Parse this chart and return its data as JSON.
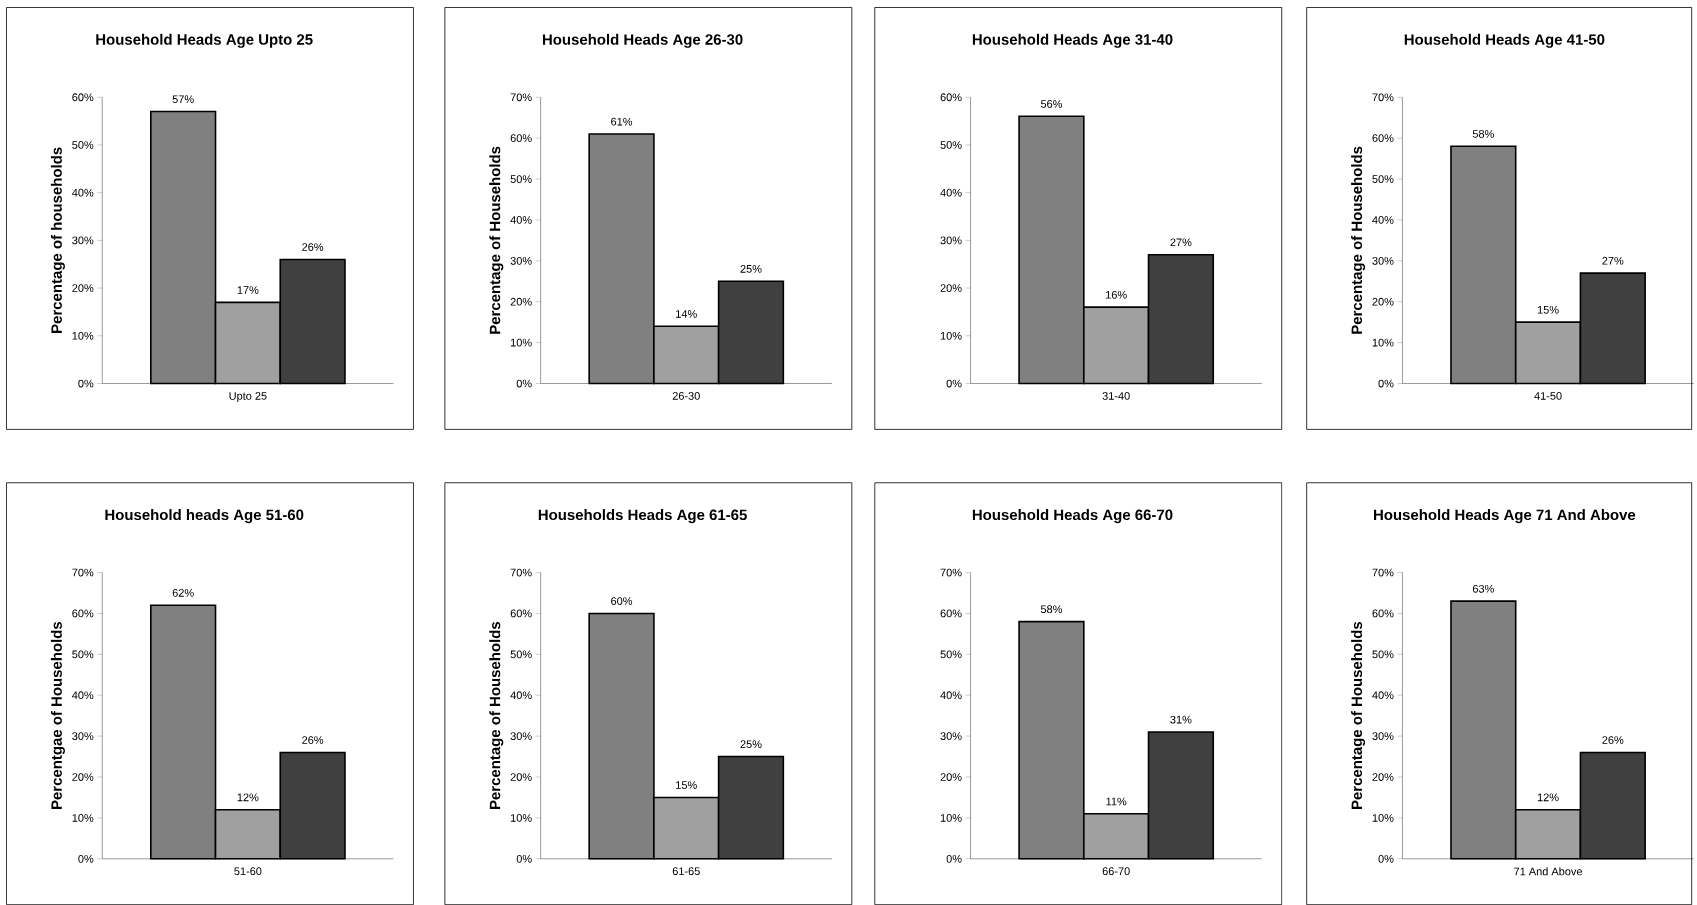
{
  "chart_data": [
    {
      "type": "bar",
      "title": "Household Heads Age Upto 25",
      "ylabel": "Percentage of households",
      "categories": [
        "Upto 25"
      ],
      "ylim": [
        0,
        60
      ],
      "yticks": [
        {
          "value": 0,
          "label": "0%"
        },
        {
          "value": 10,
          "label": "10%"
        },
        {
          "value": 20,
          "label": "20%"
        },
        {
          "value": 30,
          "label": "30%"
        },
        {
          "value": 40,
          "label": "40%"
        },
        {
          "value": 50,
          "label": "50%"
        },
        {
          "value": 60,
          "label": "60%"
        }
      ],
      "series": [
        {
          "color": "#808080",
          "values": [
            57
          ],
          "value_labels": [
            "57%"
          ]
        },
        {
          "color": "#a0a0a0",
          "values": [
            17
          ],
          "value_labels": [
            "17%"
          ]
        },
        {
          "color": "#404040",
          "values": [
            26
          ],
          "value_labels": [
            "26%"
          ]
        }
      ]
    },
    {
      "type": "bar",
      "title": "Household Heads Age 26-30",
      "ylabel": "Percentage of Households",
      "categories": [
        "26-30"
      ],
      "ylim": [
        0,
        70
      ],
      "yticks": [
        {
          "value": 0,
          "label": "0%"
        },
        {
          "value": 10,
          "label": "10%"
        },
        {
          "value": 20,
          "label": "20%"
        },
        {
          "value": 30,
          "label": "30%"
        },
        {
          "value": 40,
          "label": "40%"
        },
        {
          "value": 50,
          "label": "50%"
        },
        {
          "value": 60,
          "label": "60%"
        },
        {
          "value": 70,
          "label": "70%"
        }
      ],
      "series": [
        {
          "color": "#808080",
          "values": [
            61
          ],
          "value_labels": [
            "61%"
          ]
        },
        {
          "color": "#a0a0a0",
          "values": [
            14
          ],
          "value_labels": [
            "14%"
          ]
        },
        {
          "color": "#404040",
          "values": [
            25
          ],
          "value_labels": [
            "25%"
          ]
        }
      ]
    },
    {
      "type": "bar",
      "title": "Household Heads Age 31-40",
      "categories": [
        "31-40"
      ],
      "ylim": [
        0,
        60
      ],
      "yticks": [
        {
          "value": 0,
          "label": "0%"
        },
        {
          "value": 10,
          "label": "10%"
        },
        {
          "value": 20,
          "label": "20%"
        },
        {
          "value": 30,
          "label": "30%"
        },
        {
          "value": 40,
          "label": "40%"
        },
        {
          "value": 50,
          "label": "50%"
        },
        {
          "value": 60,
          "label": "60%"
        }
      ],
      "series": [
        {
          "color": "#808080",
          "values": [
            56
          ],
          "value_labels": [
            "56%"
          ]
        },
        {
          "color": "#a0a0a0",
          "values": [
            16
          ],
          "value_labels": [
            "16%"
          ]
        },
        {
          "color": "#404040",
          "values": [
            27
          ],
          "value_labels": [
            "27%"
          ]
        }
      ]
    },
    {
      "type": "bar",
      "title": "Household Heads Age 41-50",
      "ylabel": "Percentage of Households",
      "categories": [
        "41-50"
      ],
      "ylim": [
        0,
        70
      ],
      "yticks": [
        {
          "value": 0,
          "label": "0%"
        },
        {
          "value": 10,
          "label": "10%"
        },
        {
          "value": 20,
          "label": "20%"
        },
        {
          "value": 30,
          "label": "30%"
        },
        {
          "value": 40,
          "label": "40%"
        },
        {
          "value": 50,
          "label": "50%"
        },
        {
          "value": 60,
          "label": "60%"
        },
        {
          "value": 70,
          "label": "70%"
        }
      ],
      "series": [
        {
          "color": "#808080",
          "values": [
            58
          ],
          "value_labels": [
            "58%"
          ]
        },
        {
          "color": "#a0a0a0",
          "values": [
            15
          ],
          "value_labels": [
            "15%"
          ]
        },
        {
          "color": "#404040",
          "values": [
            27
          ],
          "value_labels": [
            "27%"
          ]
        }
      ]
    },
    {
      "type": "bar",
      "title": "Household heads Age 51-60",
      "ylabel": "Percentgae of Households",
      "categories": [
        "51-60"
      ],
      "ylim": [
        0,
        70
      ],
      "yticks": [
        {
          "value": 0,
          "label": "0%"
        },
        {
          "value": 10,
          "label": "10%"
        },
        {
          "value": 20,
          "label": "20%"
        },
        {
          "value": 30,
          "label": "30%"
        },
        {
          "value": 40,
          "label": "40%"
        },
        {
          "value": 50,
          "label": "50%"
        },
        {
          "value": 60,
          "label": "60%"
        },
        {
          "value": 70,
          "label": "70%"
        }
      ],
      "series": [
        {
          "color": "#808080",
          "values": [
            62
          ],
          "value_labels": [
            "62%"
          ]
        },
        {
          "color": "#a0a0a0",
          "values": [
            12
          ],
          "value_labels": [
            "12%"
          ]
        },
        {
          "color": "#404040",
          "values": [
            26
          ],
          "value_labels": [
            "26%"
          ]
        }
      ]
    },
    {
      "type": "bar",
      "title": "Households Heads Age 61-65",
      "ylabel": "Percentage of Households",
      "categories": [
        "61-65"
      ],
      "ylim": [
        0,
        70
      ],
      "yticks": [
        {
          "value": 0,
          "label": "0%"
        },
        {
          "value": 10,
          "label": "10%"
        },
        {
          "value": 20,
          "label": "20%"
        },
        {
          "value": 30,
          "label": "30%"
        },
        {
          "value": 40,
          "label": "40%"
        },
        {
          "value": 50,
          "label": "50%"
        },
        {
          "value": 60,
          "label": "60%"
        },
        {
          "value": 70,
          "label": "70%"
        }
      ],
      "series": [
        {
          "color": "#808080",
          "values": [
            60
          ],
          "value_labels": [
            "60%"
          ]
        },
        {
          "color": "#a0a0a0",
          "values": [
            15
          ],
          "value_labels": [
            "15%"
          ]
        },
        {
          "color": "#404040",
          "values": [
            25
          ],
          "value_labels": [
            "25%"
          ]
        }
      ]
    },
    {
      "type": "bar",
      "title": "Household Heads Age 66-70",
      "categories": [
        "66-70"
      ],
      "ylim": [
        0,
        70
      ],
      "yticks": [
        {
          "value": 0,
          "label": "0%"
        },
        {
          "value": 10,
          "label": "10%"
        },
        {
          "value": 20,
          "label": "20%"
        },
        {
          "value": 30,
          "label": "30%"
        },
        {
          "value": 40,
          "label": "40%"
        },
        {
          "value": 50,
          "label": "50%"
        },
        {
          "value": 60,
          "label": "60%"
        },
        {
          "value": 70,
          "label": "70%"
        }
      ],
      "series": [
        {
          "color": "#808080",
          "values": [
            58
          ],
          "value_labels": [
            "58%"
          ]
        },
        {
          "color": "#a0a0a0",
          "values": [
            11
          ],
          "value_labels": [
            "11%"
          ]
        },
        {
          "color": "#404040",
          "values": [
            31
          ],
          "value_labels": [
            "31%"
          ]
        }
      ]
    },
    {
      "type": "bar",
      "title": "Household Heads Age 71 And Above",
      "ylabel": "Percentage of Households",
      "categories": [
        "71 And Above"
      ],
      "ylim": [
        0,
        70
      ],
      "yticks": [
        {
          "value": 0,
          "label": "0%"
        },
        {
          "value": 10,
          "label": "10%"
        },
        {
          "value": 20,
          "label": "20%"
        },
        {
          "value": 30,
          "label": "30%"
        },
        {
          "value": 40,
          "label": "40%"
        },
        {
          "value": 50,
          "label": "50%"
        },
        {
          "value": 60,
          "label": "60%"
        },
        {
          "value": 70,
          "label": "70%"
        }
      ],
      "series": [
        {
          "color": "#808080",
          "values": [
            63
          ],
          "value_labels": [
            "63%"
          ]
        },
        {
          "color": "#a0a0a0",
          "values": [
            12
          ],
          "value_labels": [
            "12%"
          ]
        },
        {
          "color": "#404040",
          "values": [
            26
          ],
          "value_labels": [
            "26%"
          ]
        }
      ]
    }
  ]
}
